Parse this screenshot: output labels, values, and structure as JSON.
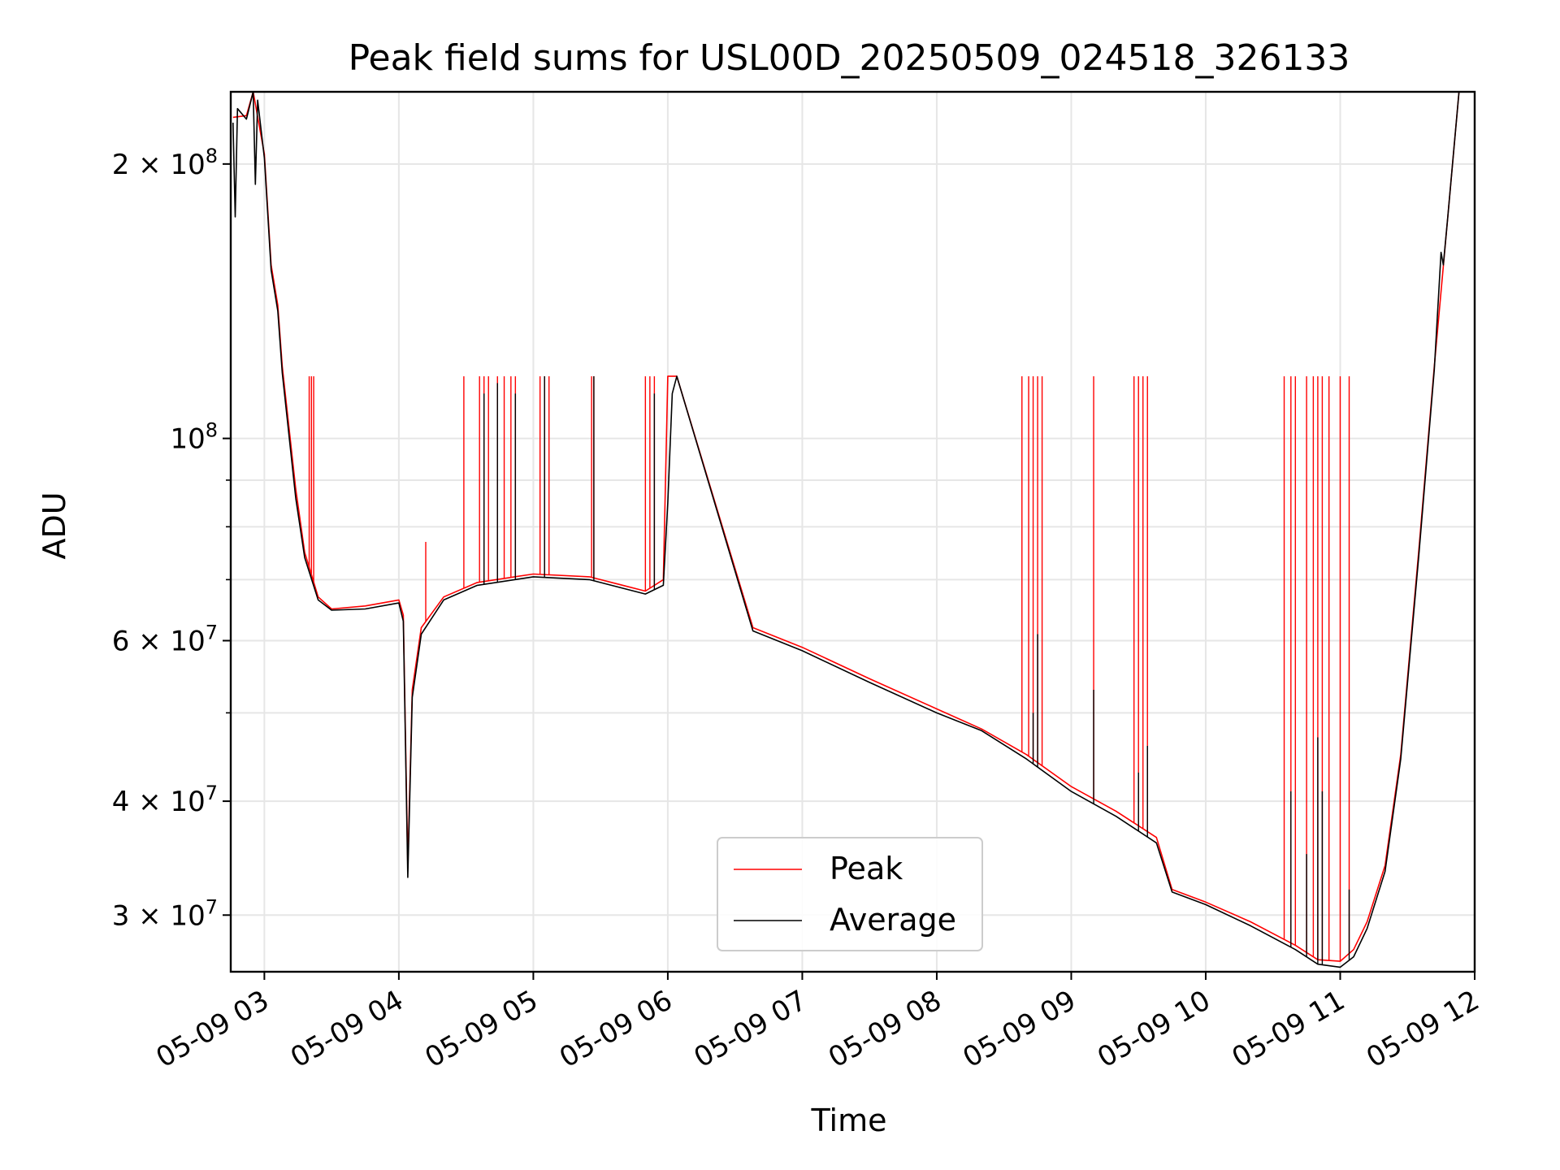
{
  "chart_data": {
    "type": "line",
    "title": "Peak field sums for USL00D_20250509_024518_326133",
    "xlabel": "Time",
    "ylabel": "ADU",
    "y_scale": "log",
    "ylim": [
      26000000,
      240000000
    ],
    "xlim": [
      "2025-05-09 02:45",
      "2025-05-09 12:00"
    ],
    "x_ticks": [
      {
        "t": "2025-05-09 03:00",
        "label": "05-09 03"
      },
      {
        "t": "2025-05-09 04:00",
        "label": "05-09 04"
      },
      {
        "t": "2025-05-09 05:00",
        "label": "05-09 05"
      },
      {
        "t": "2025-05-09 06:00",
        "label": "05-09 06"
      },
      {
        "t": "2025-05-09 07:00",
        "label": "05-09 07"
      },
      {
        "t": "2025-05-09 08:00",
        "label": "05-09 08"
      },
      {
        "t": "2025-05-09 09:00",
        "label": "05-09 09"
      },
      {
        "t": "2025-05-09 10:00",
        "label": "05-09 10"
      },
      {
        "t": "2025-05-09 11:00",
        "label": "05-09 11"
      },
      {
        "t": "2025-05-09 12:00",
        "label": "05-09 12"
      }
    ],
    "y_ticks": [
      {
        "v": 30000000,
        "base": "3 × 10",
        "exp": "7"
      },
      {
        "v": 40000000,
        "base": "4 × 10",
        "exp": "7"
      },
      {
        "v": 60000000,
        "base": "6 × 10",
        "exp": "7"
      },
      {
        "v": 100000000,
        "base": "10",
        "exp": "8"
      },
      {
        "v": 200000000,
        "base": "2 × 10",
        "exp": "8"
      }
    ],
    "y_minor_ticks": [
      50000000,
      70000000,
      80000000,
      90000000
    ],
    "grid": true,
    "legend_position": "lower center",
    "series": [
      {
        "name": "Peak",
        "color": "#ff0000",
        "points": [
          [
            "2025-05-09 02:46",
            225000000
          ],
          [
            "2025-05-09 02:52",
            226000000
          ],
          [
            "2025-05-09 02:55",
            240000000
          ],
          [
            "2025-05-09 03:00",
            205000000
          ],
          [
            "2025-05-09 03:03",
            155000000
          ],
          [
            "2025-05-09 03:06",
            140000000
          ],
          [
            "2025-05-09 03:08",
            120000000
          ],
          [
            "2025-05-09 03:14",
            88000000
          ],
          [
            "2025-05-09 03:18",
            75000000
          ],
          [
            "2025-05-09 03:24",
            67000000
          ],
          [
            "2025-05-09 03:30",
            65000000
          ],
          [
            "2025-05-09 03:45",
            65500000
          ],
          [
            "2025-05-09 04:00",
            66500000
          ],
          [
            "2025-05-09 04:02",
            64000000
          ],
          [
            "2025-05-09 04:04",
            34000000
          ],
          [
            "2025-05-09 04:06",
            53000000
          ],
          [
            "2025-05-09 04:10",
            62000000
          ],
          [
            "2025-05-09 04:20",
            67000000
          ],
          [
            "2025-05-09 04:35",
            69500000
          ],
          [
            "2025-05-09 05:00",
            71000000
          ],
          [
            "2025-05-09 05:25",
            70500000
          ],
          [
            "2025-05-09 05:50",
            68000000
          ],
          [
            "2025-05-09 05:58",
            70000000
          ],
          [
            "2025-05-09 06:00",
            117000000
          ],
          [
            "2025-05-09 06:04",
            117000000
          ],
          [
            "2025-05-09 06:38",
            62000000
          ],
          [
            "2025-05-09 07:00",
            59000000
          ],
          [
            "2025-05-09 07:30",
            54500000
          ],
          [
            "2025-05-09 08:00",
            50500000
          ],
          [
            "2025-05-09 08:20",
            48000000
          ],
          [
            "2025-05-09 08:40",
            45000000
          ],
          [
            "2025-05-09 09:00",
            41500000
          ],
          [
            "2025-05-09 09:20",
            39000000
          ],
          [
            "2025-05-09 09:38",
            36500000
          ],
          [
            "2025-05-09 09:45",
            32000000
          ],
          [
            "2025-05-09 10:00",
            31000000
          ],
          [
            "2025-05-09 10:20",
            29500000
          ],
          [
            "2025-05-09 10:40",
            27800000
          ],
          [
            "2025-05-09 10:50",
            26800000
          ],
          [
            "2025-05-09 11:00",
            26700000
          ],
          [
            "2025-05-09 11:06",
            27500000
          ],
          [
            "2025-05-09 11:12",
            29500000
          ],
          [
            "2025-05-09 11:20",
            34000000
          ],
          [
            "2025-05-09 11:27",
            45000000
          ],
          [
            "2025-05-09 11:35",
            75000000
          ],
          [
            "2025-05-09 11:42",
            120000000
          ],
          [
            "2025-05-09 11:48",
            175000000
          ],
          [
            "2025-05-09 11:53",
            240000000
          ]
        ],
        "spikes": [
          [
            "2025-05-09 03:20",
            117000000
          ],
          [
            "2025-05-09 03:21",
            117000000
          ],
          [
            "2025-05-09 03:22",
            117000000
          ],
          [
            "2025-05-09 04:12",
            77000000
          ],
          [
            "2025-05-09 04:29",
            117000000
          ],
          [
            "2025-05-09 04:36",
            117000000
          ],
          [
            "2025-05-09 04:38",
            117000000
          ],
          [
            "2025-05-09 04:40",
            117000000
          ],
          [
            "2025-05-09 04:44",
            117000000
          ],
          [
            "2025-05-09 04:47",
            117000000
          ],
          [
            "2025-05-09 04:50",
            117000000
          ],
          [
            "2025-05-09 04:52",
            117000000
          ],
          [
            "2025-05-09 05:03",
            117000000
          ],
          [
            "2025-05-09 05:05",
            117000000
          ],
          [
            "2025-05-09 05:07",
            117000000
          ],
          [
            "2025-05-09 05:26",
            117000000
          ],
          [
            "2025-05-09 05:27",
            117000000
          ],
          [
            "2025-05-09 05:50",
            117000000
          ],
          [
            "2025-05-09 05:52",
            117000000
          ],
          [
            "2025-05-09 05:54",
            117000000
          ],
          [
            "2025-05-09 08:38",
            117000000
          ],
          [
            "2025-05-09 08:41",
            117000000
          ],
          [
            "2025-05-09 08:43",
            117000000
          ],
          [
            "2025-05-09 08:45",
            117000000
          ],
          [
            "2025-05-09 08:47",
            117000000
          ],
          [
            "2025-05-09 09:10",
            117000000
          ],
          [
            "2025-05-09 09:28",
            117000000
          ],
          [
            "2025-05-09 09:30",
            117000000
          ],
          [
            "2025-05-09 09:32",
            117000000
          ],
          [
            "2025-05-09 09:34",
            117000000
          ],
          [
            "2025-05-09 10:35",
            117000000
          ],
          [
            "2025-05-09 10:38",
            117000000
          ],
          [
            "2025-05-09 10:40",
            117000000
          ],
          [
            "2025-05-09 10:45",
            117000000
          ],
          [
            "2025-05-09 10:48",
            117000000
          ],
          [
            "2025-05-09 10:50",
            117000000
          ],
          [
            "2025-05-09 10:52",
            117000000
          ],
          [
            "2025-05-09 10:55",
            117000000
          ],
          [
            "2025-05-09 11:00",
            117000000
          ],
          [
            "2025-05-09 11:04",
            117000000
          ]
        ]
      },
      {
        "name": "Average",
        "color": "#000000",
        "points": [
          [
            "2025-05-09 02:46",
            222000000
          ],
          [
            "2025-05-09 02:47",
            175000000
          ],
          [
            "2025-05-09 02:48",
            230000000
          ],
          [
            "2025-05-09 02:52",
            224000000
          ],
          [
            "2025-05-09 02:55",
            240000000
          ],
          [
            "2025-05-09 02:56",
            190000000
          ],
          [
            "2025-05-09 02:57",
            235000000
          ],
          [
            "2025-05-09 03:00",
            203000000
          ],
          [
            "2025-05-09 03:03",
            153000000
          ],
          [
            "2025-05-09 03:06",
            138000000
          ],
          [
            "2025-05-09 03:08",
            118000000
          ],
          [
            "2025-05-09 03:14",
            86000000
          ],
          [
            "2025-05-09 03:18",
            74000000
          ],
          [
            "2025-05-09 03:24",
            66500000
          ],
          [
            "2025-05-09 03:30",
            64800000
          ],
          [
            "2025-05-09 03:45",
            65000000
          ],
          [
            "2025-05-09 04:00",
            66000000
          ],
          [
            "2025-05-09 04:02",
            63000000
          ],
          [
            "2025-05-09 04:04",
            33000000
          ],
          [
            "2025-05-09 04:06",
            52000000
          ],
          [
            "2025-05-09 04:10",
            61000000
          ],
          [
            "2025-05-09 04:20",
            66500000
          ],
          [
            "2025-05-09 04:35",
            69000000
          ],
          [
            "2025-05-09 05:00",
            70500000
          ],
          [
            "2025-05-09 05:25",
            70000000
          ],
          [
            "2025-05-09 05:50",
            67500000
          ],
          [
            "2025-05-09 05:58",
            69000000
          ],
          [
            "2025-05-09 06:00",
            85000000
          ],
          [
            "2025-05-09 06:02",
            112000000
          ],
          [
            "2025-05-09 06:04",
            117000000
          ],
          [
            "2025-05-09 06:38",
            61500000
          ],
          [
            "2025-05-09 07:00",
            58500000
          ],
          [
            "2025-05-09 07:30",
            54000000
          ],
          [
            "2025-05-09 08:00",
            50000000
          ],
          [
            "2025-05-09 08:20",
            47800000
          ],
          [
            "2025-05-09 08:40",
            44500000
          ],
          [
            "2025-05-09 09:00",
            41000000
          ],
          [
            "2025-05-09 09:20",
            38500000
          ],
          [
            "2025-05-09 09:38",
            36000000
          ],
          [
            "2025-05-09 09:45",
            31800000
          ],
          [
            "2025-05-09 10:00",
            30800000
          ],
          [
            "2025-05-09 10:20",
            29200000
          ],
          [
            "2025-05-09 10:40",
            27500000
          ],
          [
            "2025-05-09 10:50",
            26500000
          ],
          [
            "2025-05-09 11:00",
            26300000
          ],
          [
            "2025-05-09 11:06",
            27000000
          ],
          [
            "2025-05-09 11:12",
            29000000
          ],
          [
            "2025-05-09 11:20",
            33500000
          ],
          [
            "2025-05-09 11:27",
            44500000
          ],
          [
            "2025-05-09 11:35",
            74000000
          ],
          [
            "2025-05-09 11:42",
            119000000
          ],
          [
            "2025-05-09 11:45",
            160000000
          ],
          [
            "2025-05-09 11:46",
            155000000
          ],
          [
            "2025-05-09 11:48",
            175000000
          ],
          [
            "2025-05-09 11:53",
            240000000
          ]
        ],
        "spikes": [
          [
            "2025-05-09 04:38",
            112000000
          ],
          [
            "2025-05-09 04:44",
            115000000
          ],
          [
            "2025-05-09 04:52",
            112000000
          ],
          [
            "2025-05-09 05:05",
            117000000
          ],
          [
            "2025-05-09 05:27",
            117000000
          ],
          [
            "2025-05-09 05:54",
            112000000
          ],
          [
            "2025-05-09 08:43",
            50000000
          ],
          [
            "2025-05-09 08:45",
            61000000
          ],
          [
            "2025-05-09 09:10",
            53000000
          ],
          [
            "2025-05-09 09:30",
            43000000
          ],
          [
            "2025-05-09 09:34",
            46000000
          ],
          [
            "2025-05-09 10:38",
            41000000
          ],
          [
            "2025-05-09 10:45",
            35000000
          ],
          [
            "2025-05-09 10:50",
            47000000
          ],
          [
            "2025-05-09 10:52",
            41000000
          ],
          [
            "2025-05-09 11:04",
            32000000
          ]
        ]
      }
    ]
  }
}
